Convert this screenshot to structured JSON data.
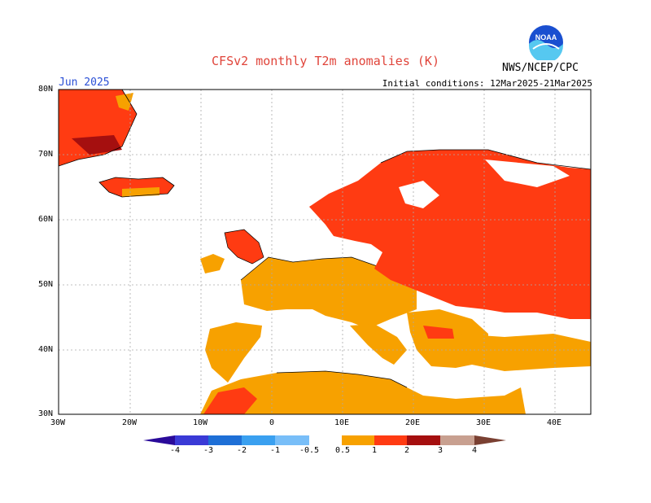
{
  "header": {
    "title": "CFSv2 monthly T2m anomalies (K)",
    "month": "Jun 2025",
    "initial_conditions": "Initial conditions: 12Mar2025-21Mar2025",
    "agency": "NWS/NCEP/CPC",
    "logo_text": "NOAA"
  },
  "axes": {
    "lon_labels": [
      "30W",
      "20W",
      "10W",
      "0",
      "10E",
      "20E",
      "30E",
      "40E"
    ],
    "lat_labels": [
      "80N",
      "70N",
      "60N",
      "50N",
      "40N",
      "30N"
    ]
  },
  "colorbar": {
    "tick_labels": [
      "-4",
      "-3",
      "-2",
      "-1",
      "-0.5",
      "0.5",
      "1",
      "2",
      "3",
      "4"
    ],
    "colors": {
      "lt_m4": "#2a0a9a",
      "m4_m3": "#3a3ad6",
      "m3_m2": "#1e6fd6",
      "m2_m1": "#3aa0f0",
      "m1_m05": "#78bef8",
      "neutral": "#ffffff",
      "p05_p1": "#f7a100",
      "p1_p2": "#ff3b12",
      "p2_p3": "#a50f0f",
      "p3_p4": "#c8a090",
      "gt_p4": "#7a4032"
    }
  },
  "map_colors": {
    "land_outline": "#000000",
    "grid": "#aaaaaa",
    "orange": "#f7a100",
    "red": "#ff3b12",
    "darkred": "#a50f0f"
  }
}
